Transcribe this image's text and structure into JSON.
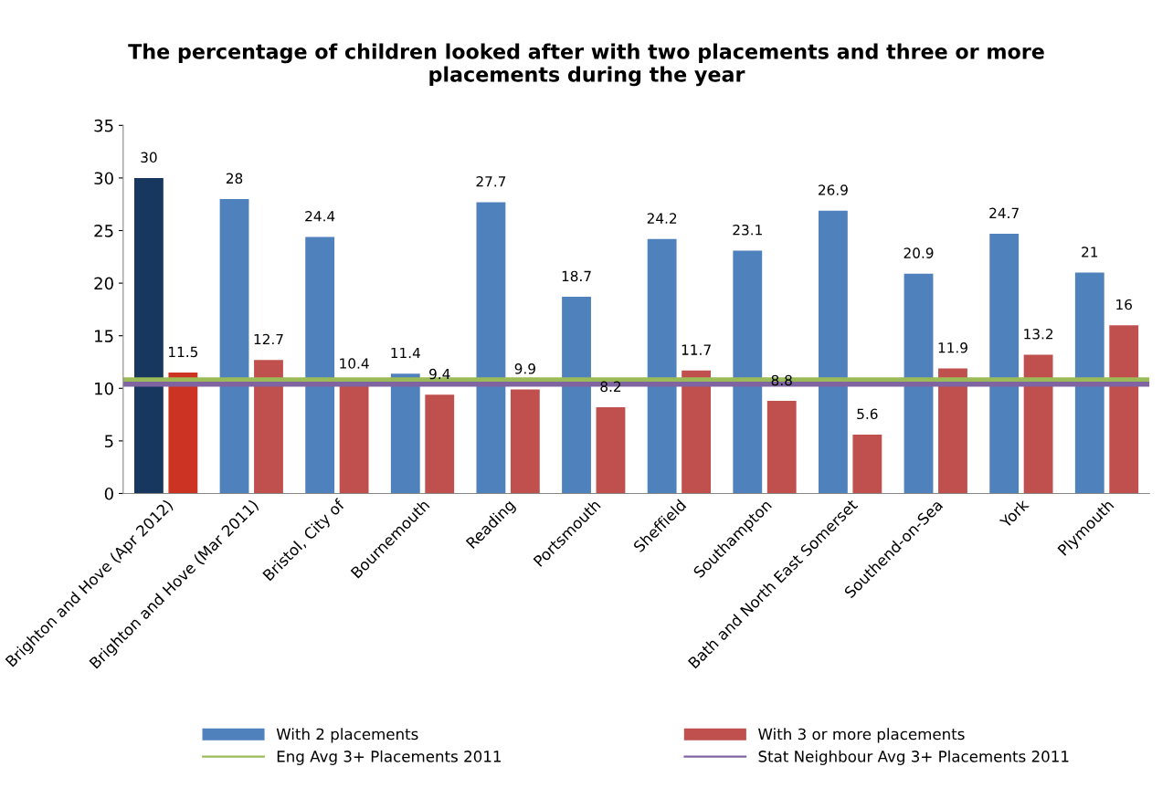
{
  "chart_data": {
    "type": "bar",
    "title": "The percentage of children looked after with two placements and three or more placements during the year",
    "categories": [
      "Brighton and Hove (Apr 2012)",
      "Brighton and Hove (Mar 2011)",
      "Bristol, City of",
      "Bournemouth",
      "Reading",
      "Portsmouth",
      "Sheffield",
      "Southampton",
      "Bath and North East Somerset",
      "Southend-on-Sea",
      "York",
      "Plymouth"
    ],
    "series": [
      {
        "name": "With 2 placements",
        "color": "#4f81bd",
        "colors": [
          "#17375e",
          "#4f81bd",
          "#4f81bd",
          "#4f81bd",
          "#4f81bd",
          "#4f81bd",
          "#4f81bd",
          "#4f81bd",
          "#4f81bd",
          "#4f81bd",
          "#4f81bd",
          "#4f81bd"
        ],
        "values": [
          30,
          28,
          24.4,
          11.4,
          27.7,
          18.7,
          24.2,
          23.1,
          26.9,
          20.9,
          24.7,
          21
        ]
      },
      {
        "name": "With 3 or more placements",
        "color": "#c0504d",
        "colors": [
          "#cc3322",
          "#c0504d",
          "#c0504d",
          "#c0504d",
          "#c0504d",
          "#c0504d",
          "#c0504d",
          "#c0504d",
          "#c0504d",
          "#c0504d",
          "#c0504d",
          "#c0504d"
        ],
        "values": [
          11.5,
          12.7,
          10.4,
          9.4,
          9.9,
          8.2,
          11.7,
          8.8,
          5.6,
          11.9,
          13.2,
          16
        ]
      }
    ],
    "ref_lines": [
      {
        "axis": "y",
        "value": 10.8,
        "label": "Eng Avg 3+ Placements 2011",
        "color": "#9bbb59"
      },
      {
        "axis": "y",
        "value": 10.4,
        "label": "Stat Neighbour Avg 3+ Placements 2011",
        "color": "#8064a2"
      }
    ],
    "ylim": [
      0,
      35
    ],
    "yticks": [
      0,
      5,
      10,
      15,
      20,
      25,
      30,
      35
    ],
    "data_labels": true,
    "grid": false,
    "legend": "bottom"
  }
}
